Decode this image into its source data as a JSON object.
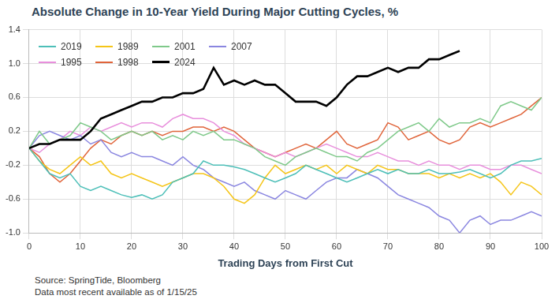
{
  "chart_data": {
    "type": "line",
    "title": "Absolute Change in 10-Year Yield During Major Cutting Cycles, %",
    "x_label": "Trading Days from First Cut",
    "notes": [
      "Source: SpringTide, Bloomberg",
      "Data most recent available as of 1/15/25"
    ],
    "x": [
      0,
      2,
      4,
      6,
      8,
      10,
      12,
      14,
      16,
      18,
      20,
      22,
      24,
      26,
      28,
      30,
      32,
      34,
      36,
      38,
      40,
      42,
      44,
      46,
      48,
      50,
      52,
      54,
      56,
      58,
      60,
      62,
      64,
      66,
      68,
      70,
      72,
      74,
      76,
      78,
      80,
      82,
      84,
      86,
      88,
      90,
      92,
      94,
      96,
      98,
      100
    ],
    "series": [
      {
        "name": "2019",
        "color": "#4dbfb8",
        "values": [
          0,
          -0.15,
          -0.3,
          -0.35,
          -0.3,
          -0.45,
          -0.5,
          -0.45,
          -0.5,
          -0.55,
          -0.58,
          -0.55,
          -0.6,
          -0.55,
          -0.4,
          -0.35,
          -0.3,
          -0.15,
          -0.2,
          -0.2,
          -0.22,
          -0.25,
          -0.3,
          -0.35,
          -0.4,
          -0.35,
          -0.3,
          -0.2,
          -0.25,
          -0.3,
          -0.35,
          -0.4,
          -0.35,
          -0.3,
          -0.25,
          -0.3,
          -0.25,
          -0.3,
          -0.3,
          -0.25,
          -0.3,
          -0.3,
          -0.28,
          -0.25,
          -0.3,
          -0.35,
          -0.3,
          -0.2,
          -0.15,
          -0.15,
          -0.12
        ]
      },
      {
        "name": "1989",
        "color": "#f5c518",
        "values": [
          0,
          -0.15,
          -0.25,
          -0.3,
          -0.2,
          -0.1,
          -0.2,
          -0.15,
          -0.3,
          -0.35,
          -0.3,
          -0.35,
          -0.4,
          -0.45,
          -0.4,
          -0.35,
          -0.3,
          -0.3,
          -0.35,
          -0.45,
          -0.6,
          -0.65,
          -0.55,
          -0.35,
          -0.2,
          -0.3,
          -0.25,
          -0.2,
          -0.25,
          -0.2,
          -0.3,
          -0.2,
          -0.25,
          -0.3,
          -0.2,
          -0.25,
          -0.25,
          -0.3,
          -0.3,
          -0.3,
          -0.35,
          -0.3,
          -0.35,
          -0.3,
          -0.35,
          -0.3,
          -0.4,
          -0.55,
          -0.4,
          -0.45,
          -0.55
        ]
      },
      {
        "name": "2001",
        "color": "#7fc98a",
        "values": [
          0,
          0.2,
          0.05,
          0.1,
          0.15,
          0.3,
          0.25,
          0.2,
          0.1,
          0.15,
          0.2,
          0.15,
          0.2,
          0.1,
          0.15,
          0.1,
          0.2,
          0.15,
          0.2,
          0.1,
          0.1,
          0.05,
          0,
          -0.1,
          -0.15,
          -0.2,
          -0.1,
          -0.05,
          0,
          -0.05,
          -0.1,
          -0.1,
          -0.15,
          -0.05,
          0,
          0.1,
          0.2,
          0.25,
          0.3,
          0.2,
          0.35,
          0.25,
          0.3,
          0.3,
          0.35,
          0.3,
          0.5,
          0.55,
          0.5,
          0.45,
          0.6
        ]
      },
      {
        "name": "2007",
        "color": "#8a86e0",
        "values": [
          0,
          0.15,
          0.2,
          0.15,
          0.1,
          0.15,
          0.05,
          0.1,
          -0.05,
          -0.1,
          -0.05,
          -0.1,
          -0.1,
          -0.15,
          -0.2,
          -0.1,
          -0.2,
          -0.25,
          -0.35,
          -0.4,
          -0.45,
          -0.4,
          -0.5,
          -0.55,
          -0.6,
          -0.5,
          -0.55,
          -0.6,
          -0.5,
          -0.4,
          -0.35,
          -0.35,
          -0.25,
          -0.3,
          -0.35,
          -0.45,
          -0.55,
          -0.6,
          -0.65,
          -0.7,
          -0.8,
          -0.85,
          -1.0,
          -0.85,
          -0.8,
          -0.9,
          -0.85,
          -0.85,
          -0.8,
          -0.75,
          -0.8
        ]
      },
      {
        "name": "1995",
        "color": "#e88fdc",
        "values": [
          0,
          -0.05,
          0.05,
          0.1,
          0.2,
          0.15,
          0.25,
          0.2,
          0.25,
          0.3,
          0.25,
          0.3,
          0.3,
          0.25,
          0.35,
          0.4,
          0.35,
          0.35,
          0.3,
          0.2,
          0.15,
          0.05,
          0,
          -0.05,
          -0.1,
          -0.05,
          -0.1,
          -0.05,
          0,
          0.05,
          0,
          -0.05,
          -0.1,
          -0.1,
          -0.05,
          -0.1,
          -0.15,
          -0.15,
          -0.2,
          -0.15,
          -0.2,
          -0.2,
          -0.25,
          -0.2,
          -0.2,
          -0.25,
          -0.25,
          -0.2,
          -0.2,
          -0.25,
          -0.3
        ]
      },
      {
        "name": "1998",
        "color": "#e0643a",
        "values": [
          0,
          -0.1,
          -0.3,
          -0.4,
          -0.3,
          -0.15,
          0,
          0.1,
          0.05,
          0.15,
          0.2,
          0.15,
          0.2,
          0.15,
          0.2,
          0.2,
          0.25,
          0.25,
          0.2,
          0.25,
          0.2,
          0.1,
          0,
          -0.05,
          -0.1,
          -0.05,
          0,
          0.05,
          0,
          0.1,
          0.2,
          0.05,
          0,
          0.05,
          0.1,
          0.3,
          0.25,
          0.1,
          0.15,
          0.2,
          0.1,
          0.05,
          0.1,
          0.25,
          0.3,
          0.25,
          0.3,
          0.35,
          0.4,
          0.5,
          0.6
        ]
      },
      {
        "name": "2024",
        "color": "#000000",
        "values": [
          0,
          0.05,
          0.05,
          0.1,
          0.1,
          0.1,
          0.2,
          0.35,
          0.4,
          0.45,
          0.5,
          0.55,
          0.55,
          0.6,
          0.6,
          0.65,
          0.65,
          0.7,
          0.95,
          0.75,
          0.8,
          0.75,
          0.8,
          0.75,
          0.75,
          0.65,
          0.55,
          0.55,
          0.55,
          0.5,
          0.6,
          0.75,
          0.85,
          0.85,
          0.9,
          0.95,
          0.9,
          0.95,
          0.95,
          1.05,
          1.05,
          1.1,
          1.15,
          null,
          null,
          null,
          null,
          null,
          null,
          null,
          null
        ]
      }
    ],
    "xlim": [
      0,
      100
    ],
    "xticks": [
      0,
      10,
      20,
      30,
      40,
      50,
      60,
      70,
      80,
      90,
      100
    ],
    "ylim": [
      -1.0,
      1.4
    ],
    "yticks": [
      {
        "value": -1.0,
        "label": "-1.0"
      },
      -0.6,
      -0.2,
      0.2,
      0.6,
      {
        "value": 1.0,
        "label": "1.0"
      },
      1.4
    ],
    "grid": true,
    "legend": "upper left"
  }
}
